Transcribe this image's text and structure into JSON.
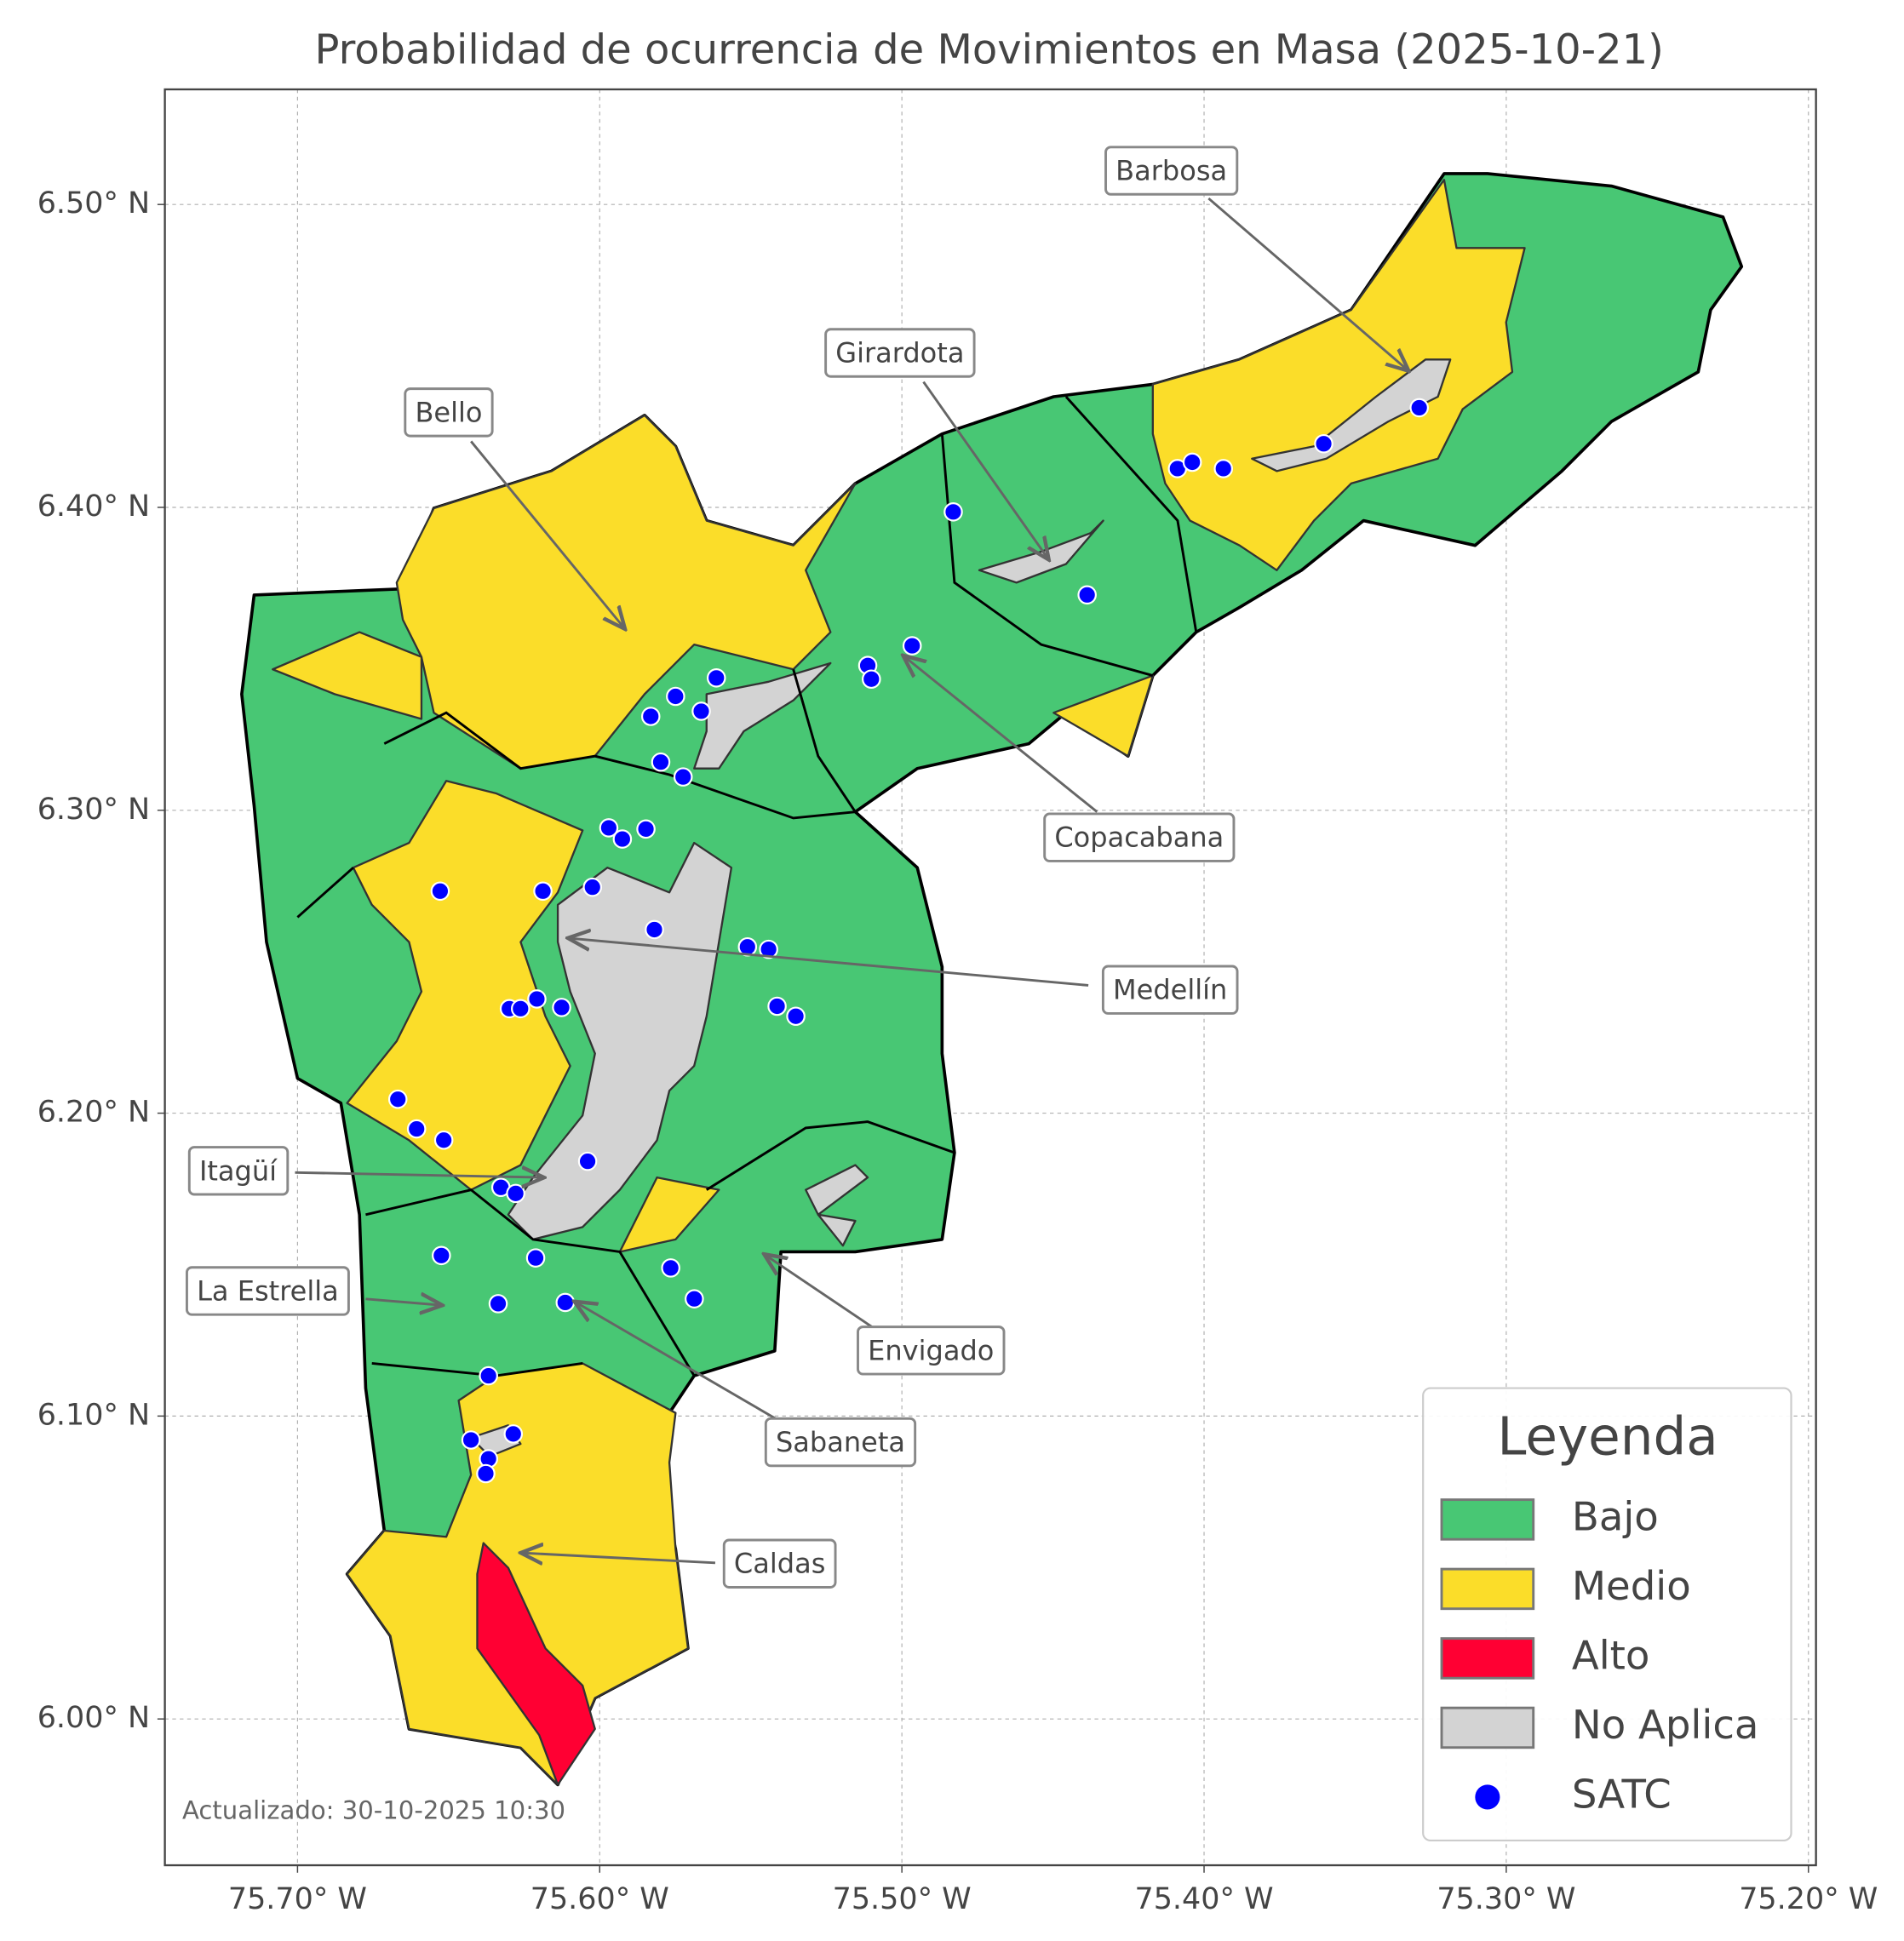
{
  "chart_data": {
    "type": "map",
    "title": "Probabilidad de ocurrencia de Movimientos en Masa (2025-10-21)",
    "xlim": [
      -75.7439,
      -75.1975
    ],
    "ylim": [
      5.9517,
      6.538
    ],
    "xticks": [
      {
        "value": -75.7,
        "label": "75.70° W"
      },
      {
        "value": -75.6,
        "label": "75.60° W"
      },
      {
        "value": -75.5,
        "label": "75.50° W"
      },
      {
        "value": -75.4,
        "label": "75.40° W"
      },
      {
        "value": -75.3,
        "label": "75.30° W"
      },
      {
        "value": -75.2,
        "label": "75.20° W"
      }
    ],
    "yticks": [
      {
        "value": 6.0,
        "label": "6.00° N"
      },
      {
        "value": 6.1,
        "label": "6.10° N"
      },
      {
        "value": 6.2,
        "label": "6.20° N"
      },
      {
        "value": 6.3,
        "label": "6.30° N"
      },
      {
        "value": 6.4,
        "label": "6.40° N"
      },
      {
        "value": 6.5,
        "label": "6.50° N"
      }
    ],
    "grid": true,
    "annotations": [
      "Barbosa",
      "Girardota",
      "Bello",
      "Copacabana",
      "Medellín",
      "Itagüí",
      "La Estrella",
      "Envigado",
      "Sabaneta",
      "Caldas"
    ],
    "footnote": "Actualizado: 30-10-2025 10:30",
    "legend": {
      "title": "Leyenda",
      "position": "lower right",
      "items": [
        {
          "name": "Bajo",
          "color": "#48c774"
        },
        {
          "name": "Medio",
          "color": "#fbdd29"
        },
        {
          "name": "Alto",
          "color": "#ff0033"
        },
        {
          "name": "No Aplica",
          "color": "#d3d3d3"
        }
      ]
    },
    "satc": {
      "name": "SATC",
      "color": "#0000ff",
      "lon": [
        -75.483,
        -75.4387,
        -75.4966,
        -75.5113,
        -75.5101,
        -75.4088,
        -75.4039,
        -75.3936,
        -75.3604,
        -75.3288,
        -75.5614,
        -75.5749,
        -75.5831,
        -75.5664,
        -75.5798,
        -75.5724,
        -75.597,
        -75.5925,
        -75.5847,
        -75.6528,
        -75.6188,
        -75.6024,
        -75.5819,
        -75.5511,
        -75.5441,
        -75.5413,
        -75.5351,
        -75.6299,
        -75.6262,
        -75.6208,
        -75.6126,
        -75.6668,
        -75.6606,
        -75.6516,
        -75.604,
        -75.6327,
        -75.6278,
        -75.6524,
        -75.6212,
        -75.5765,
        -75.6114,
        -75.5687,
        -75.6336,
        -75.6368,
        -75.6426,
        -75.6286,
        -75.6368,
        -75.6377
      ],
      "lat": [
        6.3985,
        6.3711,
        6.3543,
        6.3478,
        6.3433,
        6.4128,
        6.4149,
        6.4128,
        6.421,
        6.4329,
        6.3437,
        6.3376,
        6.331,
        6.3327,
        6.3159,
        6.311,
        6.2942,
        6.2905,
        6.2938,
        6.2733,
        6.2733,
        6.2746,
        6.2606,
        6.2549,
        6.2541,
        6.2353,
        6.232,
        6.2345,
        6.2345,
        6.2377,
        6.2349,
        6.2046,
        6.1948,
        6.1911,
        6.1841,
        6.1755,
        6.1735,
        6.153,
        6.1522,
        6.1489,
        6.1375,
        6.1387,
        6.1371,
        6.1133,
        6.0921,
        6.0941,
        6.0859,
        6.081
      ]
    }
  }
}
